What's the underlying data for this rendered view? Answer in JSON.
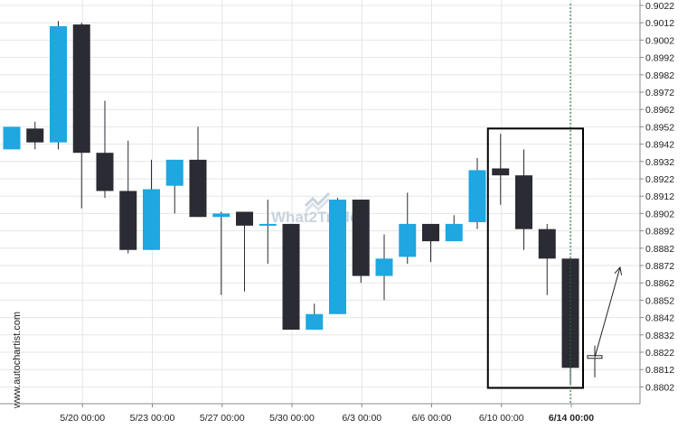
{
  "watermark": {
    "side_text": "www.autochartist.com",
    "center_text": "What2Trade"
  },
  "colors": {
    "bull": "#1ea7e1",
    "bear": "#2a2b33",
    "wick": "#2a2b33",
    "grid": "#e6e6e6",
    "box": "#000000",
    "vline": "#1e6b3a",
    "projection": "#222222"
  },
  "chart_data": {
    "type": "candlestick",
    "ylim": [
      0.8797,
      0.9022
    ],
    "y_ticks": [
      "0.9022",
      "0.9012",
      "0.9002",
      "0.8992",
      "0.8982",
      "0.8972",
      "0.8962",
      "0.8952",
      "0.8942",
      "0.8932",
      "0.8922",
      "0.8912",
      "0.8902",
      "0.8892",
      "0.8882",
      "0.8872",
      "0.8862",
      "0.8852",
      "0.8842",
      "0.8832",
      "0.8822",
      "0.8812",
      "0.8802"
    ],
    "x_ticks": [
      {
        "label": "5/20 00:00",
        "index": 3,
        "bold": false
      },
      {
        "label": "5/23 00:00",
        "index": 6,
        "bold": false
      },
      {
        "label": "5/27 00:00",
        "index": 9,
        "bold": false
      },
      {
        "label": "5/30 00:00",
        "index": 12,
        "bold": false
      },
      {
        "label": "6/3 00:00",
        "index": 15,
        "bold": false
      },
      {
        "label": "6/6 00:00",
        "index": 18,
        "bold": false
      },
      {
        "label": "6/10 00:00",
        "index": 21,
        "bold": false
      },
      {
        "label": "6/14 00:00",
        "index": 24,
        "bold": true
      }
    ],
    "candles": [
      {
        "o": 0.8939,
        "h": 0.8952,
        "l": 0.8939,
        "c": 0.8952
      },
      {
        "o": 0.8951,
        "h": 0.8955,
        "l": 0.8939,
        "c": 0.8943
      },
      {
        "o": 0.8943,
        "h": 0.9013,
        "l": 0.8939,
        "c": 0.901
      },
      {
        "o": 0.9011,
        "h": 0.9012,
        "l": 0.8905,
        "c": 0.8937
      },
      {
        "o": 0.8937,
        "h": 0.8967,
        "l": 0.8911,
        "c": 0.8915
      },
      {
        "o": 0.8915,
        "h": 0.8944,
        "l": 0.8879,
        "c": 0.8881
      },
      {
        "o": 0.8881,
        "h": 0.8933,
        "l": 0.8881,
        "c": 0.8916
      },
      {
        "o": 0.8918,
        "h": 0.8933,
        "l": 0.8902,
        "c": 0.8933
      },
      {
        "o": 0.8933,
        "h": 0.8952,
        "l": 0.89,
        "c": 0.89
      },
      {
        "o": 0.89,
        "h": 0.8903,
        "l": 0.8855,
        "c": 0.8902
      },
      {
        "o": 0.8903,
        "h": 0.8903,
        "l": 0.8857,
        "c": 0.8895
      },
      {
        "o": 0.8895,
        "h": 0.891,
        "l": 0.8873,
        "c": 0.8896
      },
      {
        "o": 0.8896,
        "h": 0.8896,
        "l": 0.8835,
        "c": 0.8835
      },
      {
        "o": 0.8835,
        "h": 0.885,
        "l": 0.8835,
        "c": 0.8844
      },
      {
        "o": 0.8844,
        "h": 0.8911,
        "l": 0.8844,
        "c": 0.891
      },
      {
        "o": 0.891,
        "h": 0.891,
        "l": 0.8862,
        "c": 0.8866
      },
      {
        "o": 0.8866,
        "h": 0.889,
        "l": 0.8852,
        "c": 0.8876
      },
      {
        "o": 0.8877,
        "h": 0.8914,
        "l": 0.8873,
        "c": 0.8896
      },
      {
        "o": 0.8896,
        "h": 0.8896,
        "l": 0.8874,
        "c": 0.8886
      },
      {
        "o": 0.8886,
        "h": 0.8901,
        "l": 0.8886,
        "c": 0.8896
      },
      {
        "o": 0.8897,
        "h": 0.8934,
        "l": 0.8893,
        "c": 0.8927
      },
      {
        "o": 0.8928,
        "h": 0.8948,
        "l": 0.8907,
        "c": 0.8924
      },
      {
        "o": 0.8924,
        "h": 0.8939,
        "l": 0.8881,
        "c": 0.8893
      },
      {
        "o": 0.8893,
        "h": 0.8896,
        "l": 0.8855,
        "c": 0.8876
      },
      {
        "o": 0.8876,
        "h": 0.8876,
        "l": 0.8803,
        "c": 0.8813
      }
    ],
    "pattern_box": {
      "from_index": 21,
      "to_index": 24,
      "high": 0.8951,
      "low": 0.8803
    },
    "forecast_marker_price": 0.8819,
    "projection_target_price": 0.8871,
    "grid": true
  }
}
